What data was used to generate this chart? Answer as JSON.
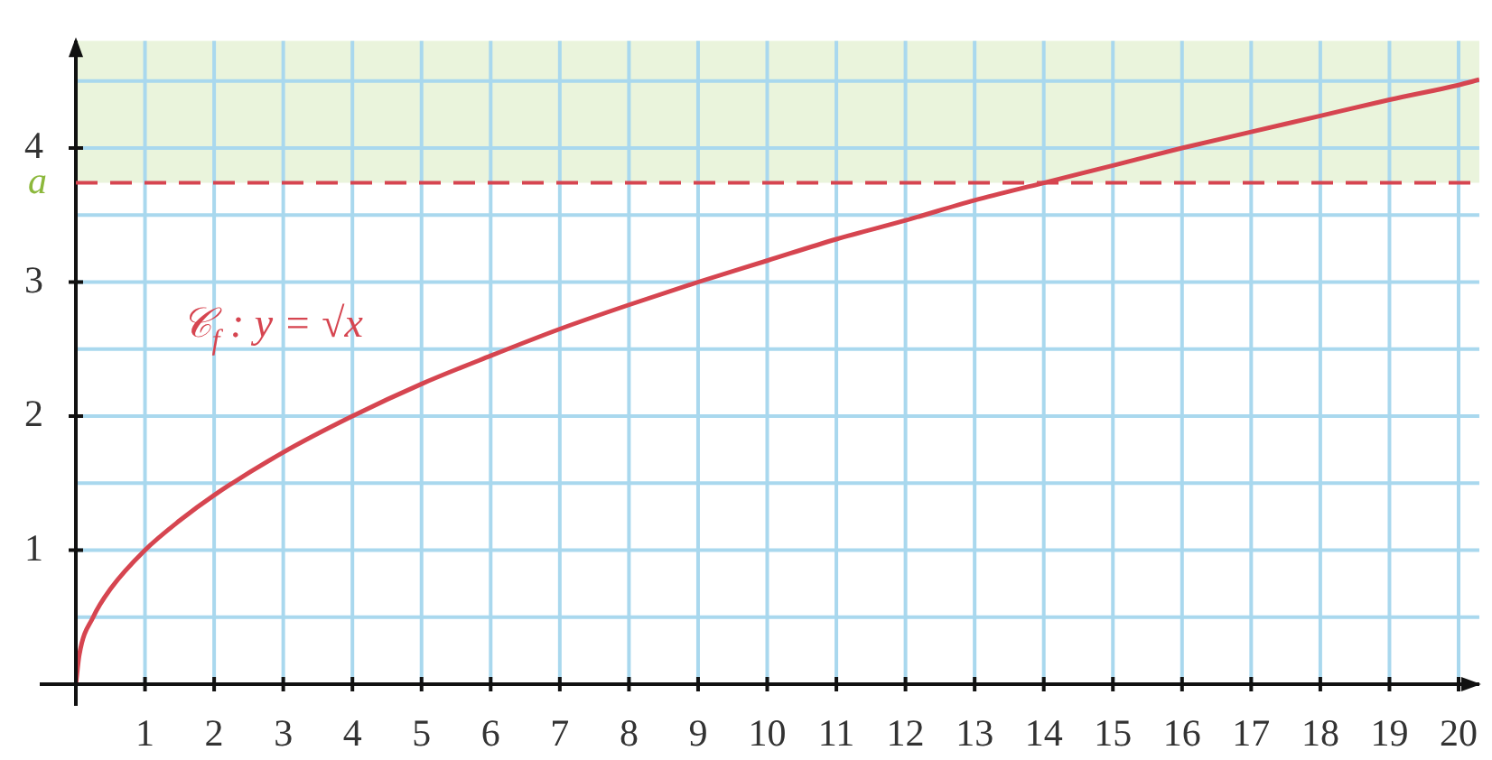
{
  "chart_data": {
    "type": "line",
    "x": [
      0,
      0.05,
      0.25,
      0.5,
      1,
      1.5,
      2,
      3,
      4,
      5,
      6,
      7,
      8,
      9,
      10,
      11,
      12,
      13,
      14,
      15,
      16,
      17,
      18,
      19,
      20,
      20.3
    ],
    "series": [
      {
        "name": "𝒞$_{f}$ : y = √x",
        "color": "#d64550",
        "values": [
          0,
          0.22,
          0.5,
          0.71,
          1,
          1.22,
          1.41,
          1.73,
          2,
          2.24,
          2.45,
          2.65,
          2.83,
          3,
          3.16,
          3.32,
          3.46,
          3.61,
          3.74,
          3.87,
          4,
          4.12,
          4.24,
          4.36,
          4.47,
          4.51
        ]
      }
    ],
    "xlim": [
      0,
      20.3
    ],
    "ylim": [
      0,
      4.8
    ],
    "xticks": [
      1,
      2,
      3,
      4,
      5,
      6,
      7,
      8,
      9,
      10,
      11,
      12,
      13,
      14,
      15,
      16,
      17,
      18,
      19,
      20
    ],
    "yticks": [
      {
        "value": 0.5,
        "label": null
      },
      1,
      {
        "value": 1.5,
        "label": null
      },
      2,
      {
        "value": 2.5,
        "label": null
      },
      3,
      {
        "value": 3.5,
        "label": null
      },
      4,
      {
        "value": 4.5,
        "label": null
      }
    ],
    "ref_lines": [
      {
        "axis": "y",
        "value": 3.74,
        "label": "a",
        "color": "#d64550",
        "line_style": "dashed"
      }
    ],
    "bands": [
      {
        "axis": "y",
        "from": 3.74,
        "to": 4.8,
        "color": "#eaf4dc"
      }
    ],
    "grid": true,
    "legend": false,
    "marker": "none",
    "line_style": "solid"
  }
}
